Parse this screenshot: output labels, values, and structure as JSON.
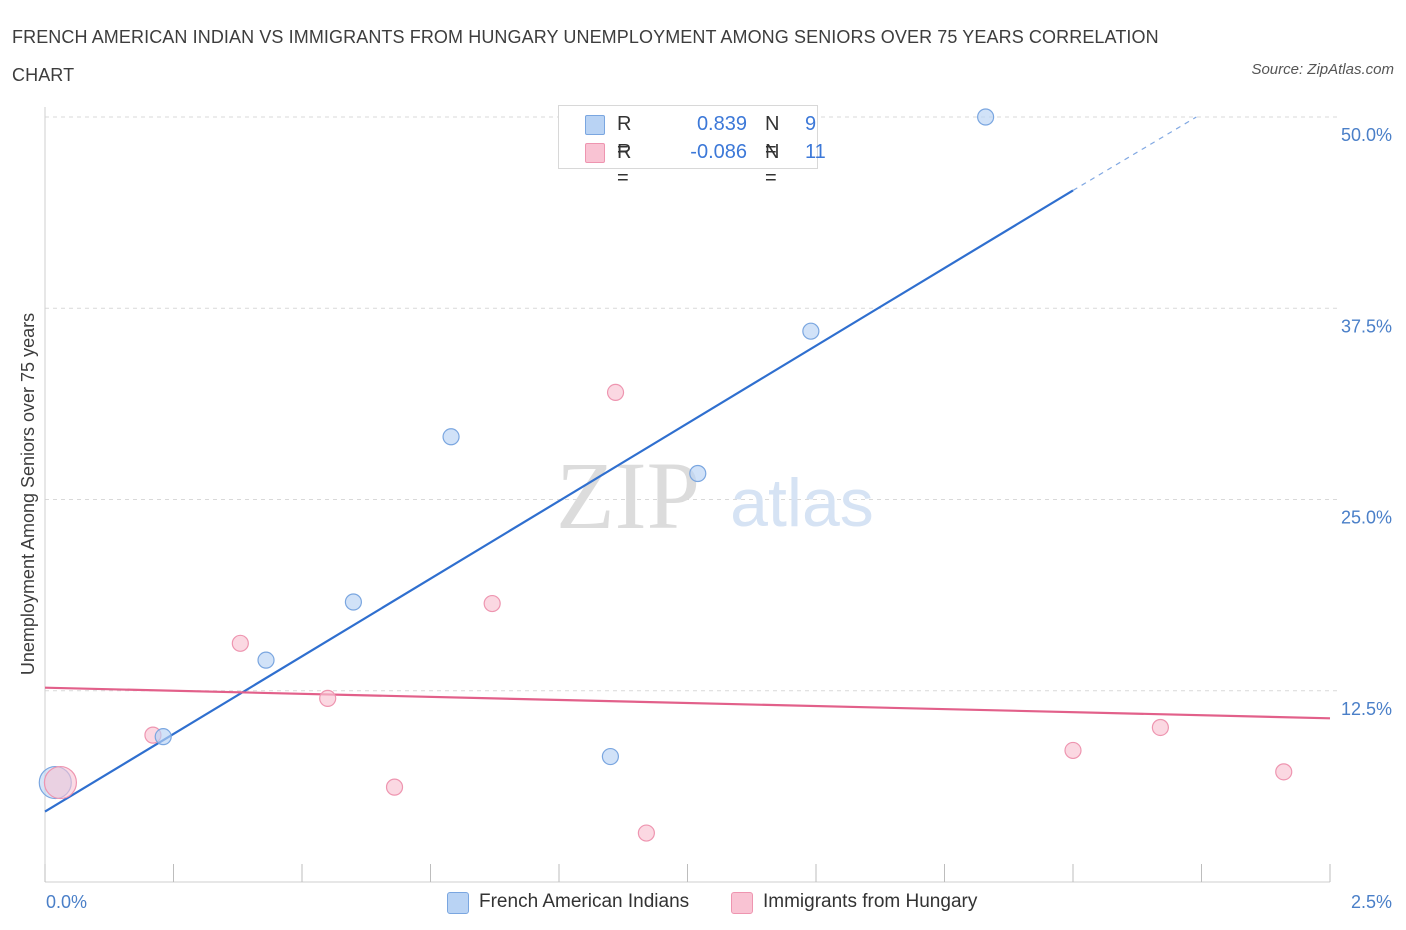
{
  "title": "FRENCH AMERICAN INDIAN VS IMMIGRANTS FROM HUNGARY UNEMPLOYMENT AMONG SENIORS OVER 75 YEARS CORRELATION CHART",
  "source": "Source: ZipAtlas.com",
  "watermark": {
    "zip": "ZIP",
    "atlas": "atlas"
  },
  "legend": {
    "rows": [
      {
        "r_label": "R =",
        "r_value": "0.839",
        "n_label": "N =",
        "n_value": "9"
      },
      {
        "r_label": "R =",
        "r_value": "-0.086",
        "n_label": "N =",
        "n_value": "11"
      }
    ]
  },
  "colors": {
    "blue_fill": "#b9d3f4",
    "blue_stroke": "#7aa6e0",
    "blue_line": "#2f6fcf",
    "pink_fill": "#f9c3d3",
    "pink_stroke": "#ee95b0",
    "pink_line": "#e2608a",
    "grid": "#d9d9d9",
    "axis_text": "#4a7fc8"
  },
  "chart_data": {
    "type": "scatter",
    "title": "FRENCH AMERICAN INDIAN VS IMMIGRANTS FROM HUNGARY UNEMPLOYMENT AMONG SENIORS OVER 75 YEARS CORRELATION CHART",
    "xlabel": "",
    "ylabel": "Unemployment Among Seniors over 75 years",
    "xlim": [
      0,
      2.5
    ],
    "ylim": [
      0,
      50
    ],
    "x_tick_labels": [
      "0.0%",
      "2.5%"
    ],
    "y_ticks": [
      12.5,
      25.0,
      37.5,
      50.0
    ],
    "y_tick_labels": [
      "12.5%",
      "25.0%",
      "37.5%",
      "50.0%"
    ],
    "grid": true,
    "series": [
      {
        "name": "French American Indians",
        "color": "#b9d3f4",
        "points": [
          {
            "x": 0.02,
            "y": 6.5,
            "size": "large"
          },
          {
            "x": 0.23,
            "y": 9.5
          },
          {
            "x": 0.43,
            "y": 14.5
          },
          {
            "x": 0.6,
            "y": 18.3
          },
          {
            "x": 0.79,
            "y": 29.1
          },
          {
            "x": 1.1,
            "y": 8.2
          },
          {
            "x": 1.27,
            "y": 26.7
          },
          {
            "x": 1.49,
            "y": 36.0
          },
          {
            "x": 1.83,
            "y": 50.0
          }
        ],
        "trend": {
          "x": [
            0.0,
            2.0
          ],
          "y": [
            4.6,
            45.2
          ],
          "dashed_to": {
            "x": 2.24,
            "y": 50.0
          }
        }
      },
      {
        "name": "Immigrants from Hungary",
        "color": "#f9c3d3",
        "points": [
          {
            "x": 0.03,
            "y": 6.5,
            "size": "large"
          },
          {
            "x": 0.21,
            "y": 9.6
          },
          {
            "x": 0.38,
            "y": 15.6
          },
          {
            "x": 0.55,
            "y": 12.0
          },
          {
            "x": 0.68,
            "y": 6.2
          },
          {
            "x": 0.87,
            "y": 18.2
          },
          {
            "x": 1.11,
            "y": 32.0
          },
          {
            "x": 1.17,
            "y": 3.2
          },
          {
            "x": 2.0,
            "y": 8.6
          },
          {
            "x": 2.17,
            "y": 10.1
          },
          {
            "x": 2.41,
            "y": 7.2
          }
        ],
        "trend": {
          "x": [
            0.0,
            2.5
          ],
          "y": [
            12.7,
            10.7
          ]
        }
      }
    ]
  }
}
